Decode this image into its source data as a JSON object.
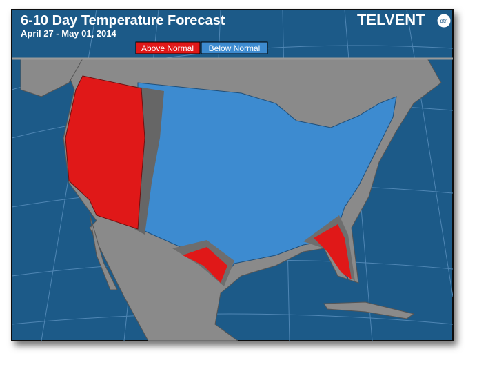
{
  "header": {
    "title": "6-10 Day Temperature Forecast",
    "date_range": "April 27 - May 01, 2014"
  },
  "legend": [
    "Above Normal",
    "Below Normal"
  ],
  "logo": {
    "name": "TELVENT",
    "badge": "dtn"
  }
}
